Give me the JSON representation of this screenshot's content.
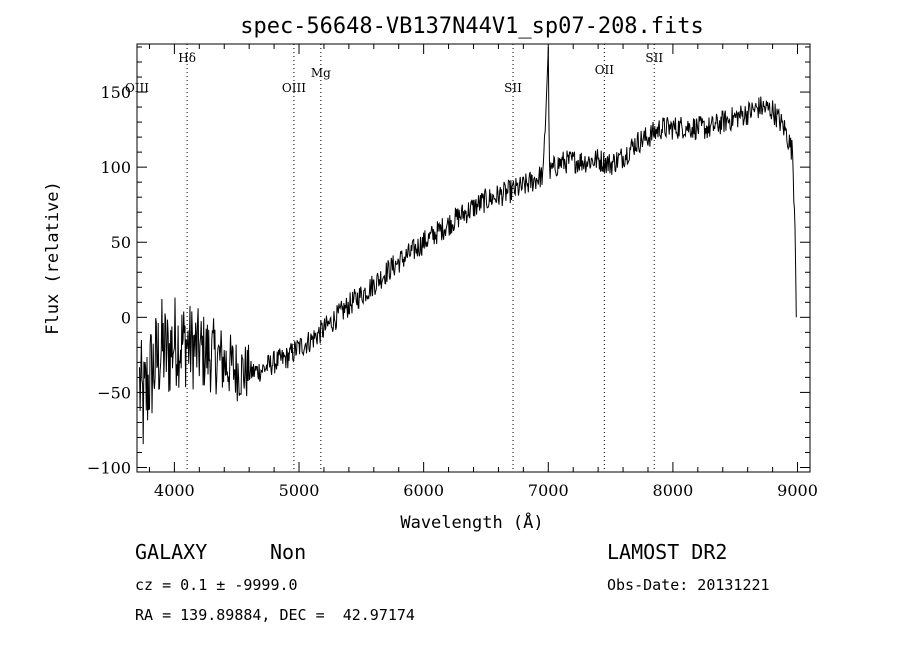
{
  "chart_data": {
    "type": "line",
    "title": "spec-56648-VB137N44V1_sp07-208.fits",
    "xlabel": "Wavelength (Å)",
    "ylabel": "Flux (relative)",
    "xlim": [
      3700,
      9100
    ],
    "ylim": [
      -103,
      182
    ],
    "x_ticks": [
      4000,
      5000,
      6000,
      7000,
      8000,
      9000
    ],
    "y_ticks": [
      -100,
      -50,
      0,
      50,
      100,
      150
    ],
    "x_tick_labels": [
      "4000",
      "5000",
      "6000",
      "7000",
      "8000",
      "9000"
    ],
    "y_tick_labels": [
      "−100",
      "−50",
      "0",
      "50",
      "100",
      "150"
    ],
    "grid": false,
    "lines": [
      {
        "label": "Hδ",
        "x": 4102,
        "y_label": 170
      },
      {
        "label": "OIII",
        "x": 4959,
        "y_label": 150
      },
      {
        "label": "Mg",
        "x": 5175,
        "y_label": 160
      },
      {
        "label": "SII",
        "x": 6717,
        "y_label": 150
      },
      {
        "label": "OII",
        "x": 7450,
        "y_label": 162
      },
      {
        "label": "SII",
        "x": 7850,
        "y_label": 170
      }
    ],
    "edge_label": {
      "text": "OIII",
      "y": 150
    },
    "series": [
      {
        "points": [
          [
            3700,
            -35
          ],
          [
            3750,
            -60
          ],
          [
            3800,
            -40
          ],
          [
            3850,
            -30
          ],
          [
            3900,
            -20
          ],
          [
            3950,
            -25
          ],
          [
            4000,
            -15
          ],
          [
            4100,
            -18
          ],
          [
            4200,
            -22
          ],
          [
            4300,
            -25
          ],
          [
            4400,
            -30
          ],
          [
            4500,
            -35
          ],
          [
            4600,
            -37
          ],
          [
            4700,
            -35
          ],
          [
            4800,
            -30
          ],
          [
            4900,
            -27
          ],
          [
            5000,
            -20
          ],
          [
            5100,
            -15
          ],
          [
            5200,
            -8
          ],
          [
            5300,
            0
          ],
          [
            5400,
            8
          ],
          [
            5500,
            15
          ],
          [
            5600,
            22
          ],
          [
            5700,
            30
          ],
          [
            5800,
            37
          ],
          [
            5900,
            43
          ],
          [
            6000,
            50
          ],
          [
            6100,
            56
          ],
          [
            6200,
            62
          ],
          [
            6300,
            68
          ],
          [
            6400,
            73
          ],
          [
            6500,
            78
          ],
          [
            6600,
            81
          ],
          [
            6700,
            84
          ],
          [
            6800,
            87
          ],
          [
            6900,
            92
          ],
          [
            6960,
            95
          ],
          [
            7000,
            180
          ],
          [
            7010,
            96
          ],
          [
            7050,
            100
          ],
          [
            7100,
            103
          ],
          [
            7200,
            104
          ],
          [
            7300,
            104
          ],
          [
            7400,
            105
          ],
          [
            7500,
            102
          ],
          [
            7600,
            107
          ],
          [
            7700,
            116
          ],
          [
            7800,
            120
          ],
          [
            7900,
            126
          ],
          [
            8000,
            126
          ],
          [
            8100,
            127
          ],
          [
            8200,
            126
          ],
          [
            8300,
            126
          ],
          [
            8400,
            130
          ],
          [
            8500,
            133
          ],
          [
            8600,
            136
          ],
          [
            8700,
            140
          ],
          [
            8800,
            138
          ],
          [
            8900,
            125
          ],
          [
            8960,
            110
          ],
          [
            8980,
            60
          ],
          [
            8990,
            0
          ],
          [
            9000,
            0
          ]
        ]
      }
    ],
    "noise_amplitude_blue": 30,
    "noise_amplitude_red": 8
  },
  "info": {
    "class": "GALAXY",
    "subclass": "Non",
    "cz": "cz = 0.1 ± -9999.0",
    "radec": "RA = 139.89884, DEC =  42.97174",
    "survey": "LAMOST DR2",
    "obs_date": "Obs-Date: 20131221"
  }
}
